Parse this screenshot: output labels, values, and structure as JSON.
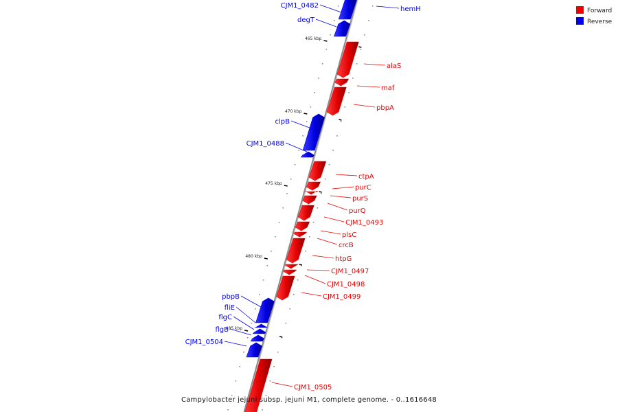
{
  "caption": "Campylobacter jejuni subsp. jejuni M1, complete genome. - 0..1616648",
  "colors": {
    "forward": "#ee0000",
    "reverse": "#0000ee",
    "backbone": "#888888"
  },
  "legend": [
    {
      "label": "Forward",
      "color": "#ee0000"
    },
    {
      "label": "Reverse",
      "color": "#0000ee"
    }
  ],
  "scale_ticks": [
    {
      "label": "465 kbp",
      "kbp": 465
    },
    {
      "label": "470 kbp",
      "kbp": 470
    },
    {
      "label": "475 kbp",
      "kbp": 475
    },
    {
      "label": "480 kbp",
      "kbp": 480
    },
    {
      "label": "485 kbp",
      "kbp": 485
    }
  ],
  "genes": [
    {
      "name": "CJM1_0482",
      "strand": "reverse"
    },
    {
      "name": "hemH",
      "strand": "reverse"
    },
    {
      "name": "degT",
      "strand": "reverse"
    },
    {
      "name": "alaS",
      "strand": "forward"
    },
    {
      "name": "maf",
      "strand": "forward"
    },
    {
      "name": "pbpA",
      "strand": "forward"
    },
    {
      "name": "clpB",
      "strand": "reverse"
    },
    {
      "name": "CJM1_0488",
      "strand": "reverse"
    },
    {
      "name": "ctpA",
      "strand": "forward"
    },
    {
      "name": "purC",
      "strand": "forward"
    },
    {
      "name": "purS",
      "strand": "forward"
    },
    {
      "name": "purQ",
      "strand": "forward"
    },
    {
      "name": "CJM1_0493",
      "strand": "forward"
    },
    {
      "name": "plsC",
      "strand": "forward"
    },
    {
      "name": "crcB",
      "strand": "forward"
    },
    {
      "name": "htpG",
      "strand": "forward"
    },
    {
      "name": "CJM1_0497",
      "strand": "forward"
    },
    {
      "name": "CJM1_0498",
      "strand": "forward"
    },
    {
      "name": "CJM1_0499",
      "strand": "forward"
    },
    {
      "name": "pbpB",
      "strand": "reverse"
    },
    {
      "name": "fliE",
      "strand": "reverse"
    },
    {
      "name": "flgC",
      "strand": "reverse"
    },
    {
      "name": "flgB",
      "strand": "reverse"
    },
    {
      "name": "CJM1_0504",
      "strand": "reverse"
    },
    {
      "name": "CJM1_0505",
      "strand": "forward"
    }
  ]
}
